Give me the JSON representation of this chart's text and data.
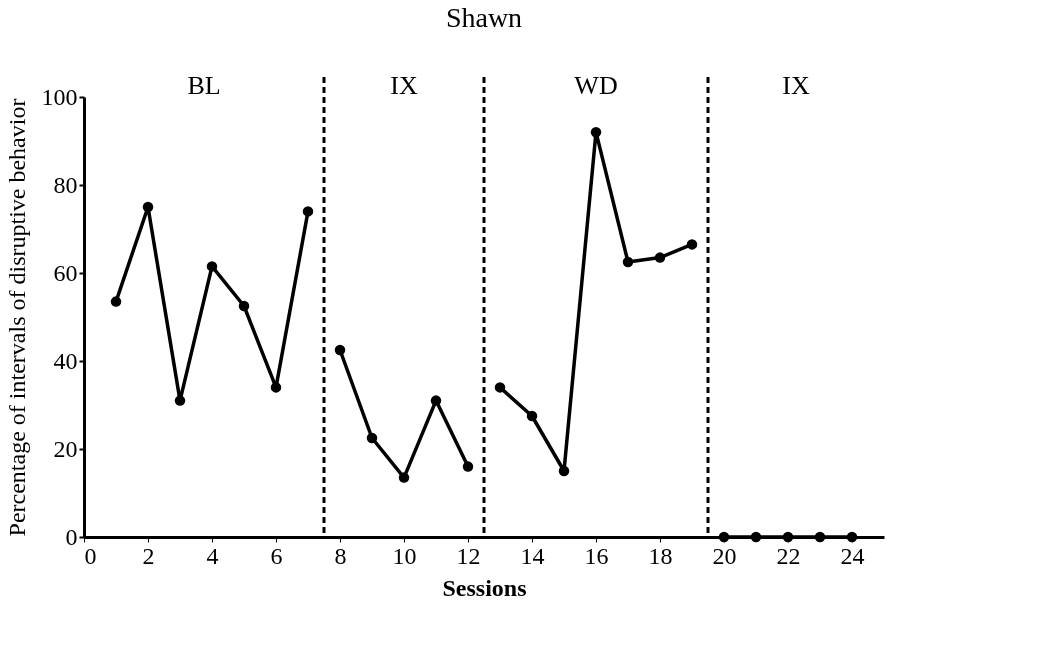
{
  "chart_data": {
    "type": "line",
    "title": "Shawn",
    "xlabel": "Sessions",
    "ylabel": "Percentage of intervals of disruptive behavior",
    "series": [
      {
        "color": "#000000",
        "x": [
          1,
          2,
          3,
          4,
          5,
          6,
          7
        ],
        "values": [
          53.5,
          75,
          31,
          61.5,
          52.5,
          34,
          74
        ]
      },
      {
        "color": "#000000",
        "x": [
          8,
          9,
          10,
          11,
          12
        ],
        "values": [
          42.5,
          22.5,
          13.5,
          31,
          16
        ]
      },
      {
        "color": "#000000",
        "x": [
          13,
          14,
          15,
          16,
          17,
          18,
          19
        ],
        "values": [
          34,
          27.5,
          15,
          92,
          62.5,
          63.5,
          66.5
        ]
      },
      {
        "color": "#000000",
        "x": [
          20,
          21,
          22,
          23,
          24
        ],
        "values": [
          0,
          0,
          0,
          0,
          0
        ]
      }
    ],
    "xlim": [
      0,
      25
    ],
    "xticks": [
      0,
      2,
      4,
      6,
      8,
      10,
      12,
      14,
      16,
      18,
      20,
      22,
      24
    ],
    "ylim": [
      0,
      100
    ],
    "yticks": [
      0,
      20,
      40,
      60,
      80,
      100
    ],
    "ref_lines": [
      {
        "axis": "x",
        "value": 7.5,
        "line_style": "dashed"
      },
      {
        "axis": "x",
        "value": 12.5,
        "line_style": "dashed"
      },
      {
        "axis": "x",
        "value": 19.5,
        "line_style": "dashed"
      }
    ],
    "annotations": [
      "BL",
      "IX",
      "WD",
      "IX"
    ],
    "marker": "circle",
    "line_style": "solid",
    "grid": false
  }
}
